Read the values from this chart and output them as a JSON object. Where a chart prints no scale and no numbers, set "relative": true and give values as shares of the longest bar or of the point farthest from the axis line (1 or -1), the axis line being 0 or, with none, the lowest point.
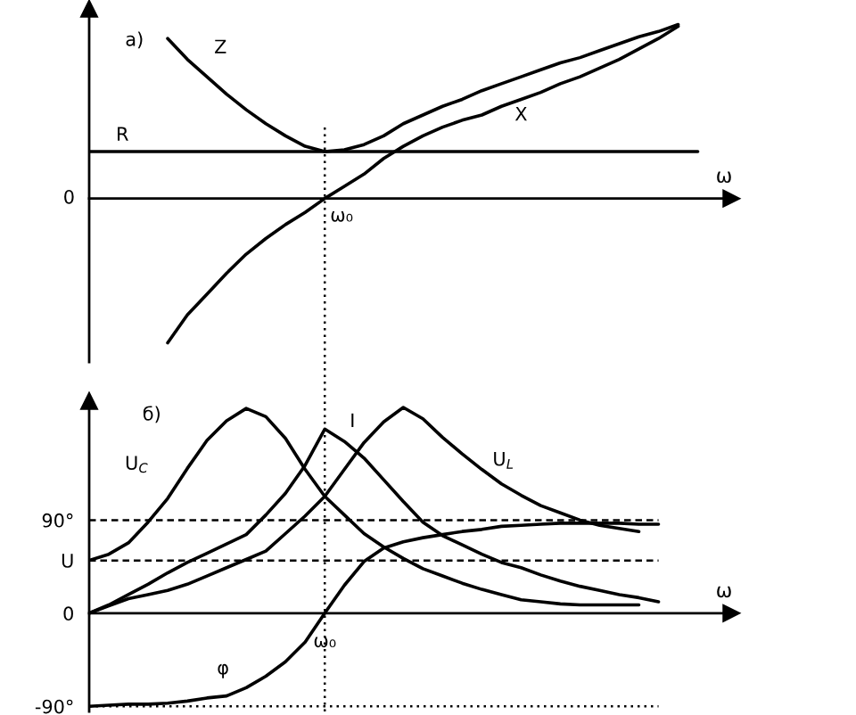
{
  "chart_data": [
    {
      "type": "line",
      "title": "а)",
      "xlabel": "ω",
      "relative": true,
      "categories": [
        null,
        null,
        null,
        null,
        null,
        null,
        null,
        null,
        null,
        null,
        null,
        null,
        null,
        null,
        null,
        null,
        null,
        null,
        null,
        null,
        null,
        null,
        null,
        null,
        null,
        null,
        null,
        null,
        null,
        null,
        null,
        null
      ],
      "series": [
        {
          "name": "Z",
          "color": "#000000",
          "values": [
            null,
            null,
            null,
            null,
            0.92,
            0.8,
            0.7,
            0.6,
            0.51,
            0.43,
            0.36,
            0.3,
            0.27,
            0.28,
            0.31,
            0.36,
            0.43,
            0.48,
            0.53,
            0.57,
            0.62,
            0.66,
            0.7,
            0.74,
            0.78,
            0.81,
            0.85,
            0.89,
            0.93,
            0.96,
            1.0,
            null
          ]
        },
        {
          "name": "X",
          "color": "#000000",
          "values": [
            null,
            null,
            null,
            null,
            -0.83,
            -0.67,
            -0.55,
            -0.43,
            -0.32,
            -0.23,
            -0.15,
            -0.08,
            0,
            0.07,
            0.14,
            0.23,
            0.3,
            0.36,
            0.41,
            0.45,
            0.48,
            0.53,
            0.57,
            0.61,
            0.66,
            0.7,
            0.75,
            0.8,
            0.86,
            0.92,
            0.99,
            null
          ]
        },
        {
          "name": "R",
          "color": "#000000",
          "values": [
            0.27,
            0.27,
            0.27,
            0.27,
            0.27,
            0.27,
            0.27,
            0.27,
            0.27,
            0.27,
            0.27,
            0.27,
            0.27,
            0.27,
            0.27,
            0.27,
            0.27,
            0.27,
            0.27,
            0.27,
            0.27,
            0.27,
            0.27,
            0.27,
            0.27,
            0.27,
            0.27,
            0.27,
            0.27,
            0.27,
            0.27,
            0.27
          ]
        }
      ],
      "annotations": [
        "0",
        "ω₀"
      ]
    },
    {
      "type": "line",
      "title": "б)",
      "xlabel": "ω",
      "categories": [
        null,
        null,
        null,
        null,
        null,
        null,
        null,
        null,
        null,
        null,
        null,
        null,
        "ω₀",
        null,
        null,
        null,
        null,
        null,
        null,
        null,
        null,
        null,
        null,
        null,
        null,
        null,
        null,
        null,
        null,
        null,
        null,
        null
      ],
      "ylim": [
        -95,
        205
      ],
      "yticks": [
        {
          "value": 90,
          "label": "90°"
        },
        {
          "value": 51,
          "label": "U"
        },
        0,
        {
          "value": -90,
          "label": "-90°"
        }
      ],
      "series": [
        {
          "name": "U$_{C}$",
          "color": "#000000",
          "values": [
            51,
            57,
            68,
            88,
            111,
            140,
            167,
            186,
            198,
            190,
            169,
            139,
            113,
            95,
            77,
            64,
            53,
            43,
            36,
            29,
            23,
            18,
            13,
            11,
            9,
            8,
            8,
            8,
            8,
            null,
            null,
            null
          ]
        },
        {
          "name": "I",
          "color": "#000000",
          "values": [
            0,
            8,
            18,
            28,
            39,
            49,
            58,
            67,
            76,
            95,
            116,
            143,
            178,
            166,
            150,
            129,
            108,
            88,
            75,
            66,
            57,
            49,
            44,
            37,
            31,
            26,
            22,
            18,
            15,
            11,
            null,
            null
          ]
        },
        {
          "name": "U$_{L}$",
          "color": "#000000",
          "values": [
            0,
            7,
            14,
            18,
            22,
            28,
            36,
            44,
            52,
            60,
            77,
            94,
            113,
            139,
            165,
            185,
            199,
            188,
            170,
            154,
            139,
            125,
            114,
            104,
            97,
            90,
            85,
            82,
            79,
            null,
            null,
            null
          ]
        },
        {
          "name": "φ",
          "color": "#000000",
          "values": [
            -90,
            -89,
            -88,
            -88,
            -87,
            -85,
            -82,
            -80,
            -72,
            -61,
            -47,
            -28,
            0,
            27,
            50,
            63,
            69,
            73,
            76,
            79,
            81,
            84,
            85,
            86,
            87,
            87,
            87,
            87,
            86,
            86,
            null,
            null
          ]
        }
      ],
      "ref_lines": [
        {
          "axis": "x",
          "value": "ω₀",
          "line_style": "dotted",
          "color": "#000000"
        },
        {
          "axis": "y",
          "value": 90,
          "line_style": "dashed",
          "color": "#000000"
        },
        {
          "axis": "y",
          "value": 51,
          "line_style": "dashed",
          "color": "#000000"
        },
        {
          "axis": "y",
          "value": -90,
          "line_style": "dotted",
          "color": "#000000"
        }
      ]
    }
  ]
}
